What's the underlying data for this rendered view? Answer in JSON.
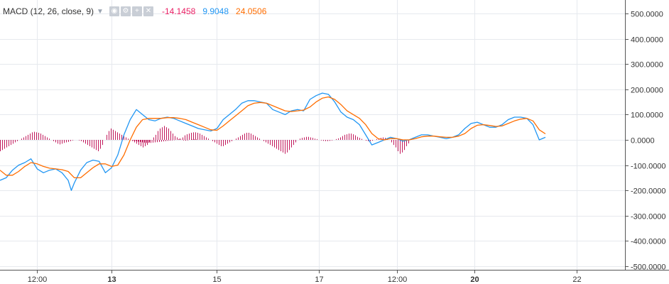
{
  "legend": {
    "title": "MACD (12, 26, close, 9)",
    "icons": [
      "eye-icon",
      "gear-icon",
      "plus-icon",
      "close-icon"
    ],
    "values": [
      {
        "text": "-14.1458",
        "color": "#e91e63"
      },
      {
        "text": "9.9048",
        "color": "#2196f3"
      },
      {
        "text": "24.0506",
        "color": "#ff6d00"
      }
    ]
  },
  "chart_data": {
    "type": "line",
    "title": "MACD (12, 26, close, 9)",
    "ylim": [
      -520,
      520
    ],
    "y_ticks": [
      500,
      400,
      300,
      200,
      100,
      0,
      -100,
      -200,
      -300,
      -400,
      -500
    ],
    "y_tick_labels": [
      "500.0000",
      "400.0000",
      "300.0000",
      "200.0000",
      "100.0000",
      "0.0000",
      "-100.0000",
      "-200.0000",
      "-300.0000",
      "-400.0000",
      "-500.0000"
    ],
    "x_range": [
      0,
      176
    ],
    "x_ticks": [
      {
        "x": 12,
        "label": "12:00",
        "bold": false
      },
      {
        "x": 36,
        "label": "13",
        "bold": true
      },
      {
        "x": 70,
        "label": "15",
        "bold": false
      },
      {
        "x": 103,
        "label": "17",
        "bold": false
      },
      {
        "x": 128,
        "label": "12:00",
        "bold": false
      },
      {
        "x": 153,
        "label": "20",
        "bold": true
      },
      {
        "x": 186,
        "label": "22",
        "bold": false
      }
    ],
    "grid": true,
    "colors": {
      "macd": "#2196f3",
      "signal": "#ff6d00",
      "histogram": "#c2185b"
    },
    "series": [
      {
        "key": "macd",
        "values": [
          [
            0,
            -160
          ],
          [
            2,
            -150
          ],
          [
            4,
            -120
          ],
          [
            6,
            -100
          ],
          [
            8,
            -90
          ],
          [
            10,
            -75
          ],
          [
            12,
            -115
          ],
          [
            14,
            -130
          ],
          [
            16,
            -120
          ],
          [
            18,
            -115
          ],
          [
            20,
            -130
          ],
          [
            22,
            -160
          ],
          [
            23,
            -200
          ],
          [
            24,
            -170
          ],
          [
            26,
            -120
          ],
          [
            28,
            -90
          ],
          [
            30,
            -80
          ],
          [
            32,
            -85
          ],
          [
            34,
            -130
          ],
          [
            36,
            -110
          ],
          [
            38,
            -60
          ],
          [
            40,
            20
          ],
          [
            42,
            80
          ],
          [
            44,
            120
          ],
          [
            46,
            100
          ],
          [
            48,
            80
          ],
          [
            50,
            75
          ],
          [
            52,
            85
          ],
          [
            54,
            90
          ],
          [
            56,
            85
          ],
          [
            58,
            75
          ],
          [
            60,
            65
          ],
          [
            62,
            55
          ],
          [
            64,
            45
          ],
          [
            66,
            40
          ],
          [
            68,
            35
          ],
          [
            70,
            45
          ],
          [
            72,
            80
          ],
          [
            74,
            100
          ],
          [
            76,
            120
          ],
          [
            78,
            145
          ],
          [
            80,
            155
          ],
          [
            82,
            155
          ],
          [
            84,
            150
          ],
          [
            86,
            145
          ],
          [
            88,
            120
          ],
          [
            90,
            110
          ],
          [
            92,
            100
          ],
          [
            94,
            115
          ],
          [
            96,
            120
          ],
          [
            98,
            115
          ],
          [
            100,
            160
          ],
          [
            102,
            175
          ],
          [
            104,
            185
          ],
          [
            106,
            180
          ],
          [
            108,
            150
          ],
          [
            110,
            110
          ],
          [
            112,
            90
          ],
          [
            114,
            80
          ],
          [
            116,
            60
          ],
          [
            118,
            20
          ],
          [
            120,
            -20
          ],
          [
            122,
            -10
          ],
          [
            124,
            0
          ],
          [
            126,
            10
          ],
          [
            128,
            5
          ],
          [
            130,
            -5
          ],
          [
            132,
            0
          ],
          [
            134,
            10
          ],
          [
            136,
            20
          ],
          [
            138,
            20
          ],
          [
            140,
            15
          ],
          [
            142,
            10
          ],
          [
            144,
            5
          ],
          [
            146,
            10
          ],
          [
            148,
            20
          ],
          [
            150,
            45
          ],
          [
            152,
            65
          ],
          [
            154,
            70
          ],
          [
            156,
            60
          ],
          [
            158,
            50
          ],
          [
            160,
            50
          ],
          [
            162,
            60
          ],
          [
            164,
            80
          ],
          [
            166,
            90
          ],
          [
            168,
            90
          ],
          [
            170,
            85
          ],
          [
            172,
            60
          ],
          [
            174,
            0
          ],
          [
            176,
            10
          ]
        ]
      },
      {
        "key": "signal",
        "values": [
          [
            0,
            -120
          ],
          [
            2,
            -140
          ],
          [
            4,
            -140
          ],
          [
            6,
            -125
          ],
          [
            8,
            -105
          ],
          [
            10,
            -90
          ],
          [
            12,
            -95
          ],
          [
            14,
            -105
          ],
          [
            16,
            -112
          ],
          [
            18,
            -115
          ],
          [
            20,
            -118
          ],
          [
            22,
            -125
          ],
          [
            24,
            -150
          ],
          [
            26,
            -150
          ],
          [
            28,
            -130
          ],
          [
            30,
            -110
          ],
          [
            32,
            -95
          ],
          [
            34,
            -95
          ],
          [
            36,
            -105
          ],
          [
            38,
            -100
          ],
          [
            40,
            -60
          ],
          [
            42,
            0
          ],
          [
            44,
            50
          ],
          [
            46,
            80
          ],
          [
            48,
            85
          ],
          [
            50,
            85
          ],
          [
            52,
            85
          ],
          [
            54,
            88
          ],
          [
            56,
            88
          ],
          [
            58,
            85
          ],
          [
            60,
            80
          ],
          [
            62,
            70
          ],
          [
            64,
            60
          ],
          [
            66,
            50
          ],
          [
            68,
            40
          ],
          [
            70,
            38
          ],
          [
            72,
            55
          ],
          [
            74,
            75
          ],
          [
            76,
            95
          ],
          [
            78,
            115
          ],
          [
            80,
            135
          ],
          [
            82,
            145
          ],
          [
            84,
            148
          ],
          [
            86,
            145
          ],
          [
            88,
            135
          ],
          [
            90,
            125
          ],
          [
            92,
            115
          ],
          [
            94,
            112
          ],
          [
            96,
            115
          ],
          [
            98,
            118
          ],
          [
            100,
            130
          ],
          [
            102,
            150
          ],
          [
            104,
            165
          ],
          [
            106,
            170
          ],
          [
            108,
            160
          ],
          [
            110,
            140
          ],
          [
            112,
            115
          ],
          [
            114,
            100
          ],
          [
            116,
            85
          ],
          [
            118,
            60
          ],
          [
            120,
            25
          ],
          [
            122,
            5
          ],
          [
            124,
            0
          ],
          [
            126,
            5
          ],
          [
            128,
            5
          ],
          [
            130,
            0
          ],
          [
            132,
            0
          ],
          [
            134,
            5
          ],
          [
            136,
            12
          ],
          [
            138,
            15
          ],
          [
            140,
            15
          ],
          [
            142,
            12
          ],
          [
            144,
            10
          ],
          [
            146,
            10
          ],
          [
            148,
            15
          ],
          [
            150,
            25
          ],
          [
            152,
            45
          ],
          [
            154,
            58
          ],
          [
            156,
            60
          ],
          [
            158,
            57
          ],
          [
            160,
            53
          ],
          [
            162,
            55
          ],
          [
            164,
            65
          ],
          [
            166,
            75
          ],
          [
            168,
            82
          ],
          [
            170,
            85
          ],
          [
            172,
            75
          ],
          [
            174,
            40
          ],
          [
            176,
            24
          ]
        ]
      }
    ],
    "histogram": [
      {
        "x": 0,
        "values": [
          -45,
          -40,
          -35,
          -30,
          -25,
          -20,
          -15,
          -10,
          -5,
          0,
          5,
          10,
          15,
          20,
          25,
          30,
          32,
          30,
          28,
          25,
          20,
          15,
          10,
          5,
          0,
          -5,
          -10,
          -15,
          -18,
          -15,
          -12,
          -10,
          -8,
          -5,
          -2,
          0,
          0,
          -2,
          -5,
          -10,
          -15,
          -20,
          -25,
          -30,
          -35,
          -40,
          -45,
          -35,
          -20,
          0,
          20,
          35,
          45,
          40,
          35,
          30,
          25,
          20,
          15,
          10,
          5,
          0,
          -5,
          -10,
          -15,
          -20,
          -25,
          -30,
          -25,
          -20,
          -10,
          0,
          10,
          20,
          35,
          45,
          50,
          55,
          50,
          45,
          35,
          25,
          15,
          10,
          5,
          0,
          -2,
          -3,
          -2,
          0,
          2,
          3,
          2,
          0
        ]
      },
      {
        "x": 43,
        "values": [
          -3,
          -5,
          -7,
          -8,
          -10,
          -11,
          -12,
          -12,
          -12,
          -11,
          -10,
          -9,
          -8,
          -7,
          -6,
          -5,
          -4,
          -3,
          -2,
          -1,
          0,
          2,
          5,
          10,
          18,
          22,
          25,
          28,
          30,
          30,
          28,
          25,
          20,
          15,
          10,
          5,
          0,
          -5,
          -10,
          -15,
          -20,
          -25,
          -25,
          -20,
          -15,
          -10,
          -5,
          0,
          5,
          10,
          15,
          20,
          25,
          28,
          28,
          25,
          20,
          15,
          10,
          5,
          0,
          -5,
          -10,
          -15,
          -20,
          -25,
          -30,
          -35,
          -40,
          -45,
          -50,
          -55,
          -50,
          -40,
          -30,
          -20,
          -10,
          0,
          5,
          8,
          10,
          12,
          12,
          10,
          8,
          5,
          3,
          0,
          -2,
          -4,
          -5,
          -5,
          -4,
          -2,
          0,
          3,
          6,
          10,
          15,
          20,
          22,
          25,
          25,
          22,
          18,
          12,
          8,
          4,
          0,
          -3,
          -5,
          -5,
          -3,
          0,
          3,
          5,
          8,
          10,
          8,
          5,
          0,
          -10,
          -20,
          -30,
          -45,
          -55,
          -50,
          -40,
          -25,
          -14
        ]
      }
    ]
  }
}
